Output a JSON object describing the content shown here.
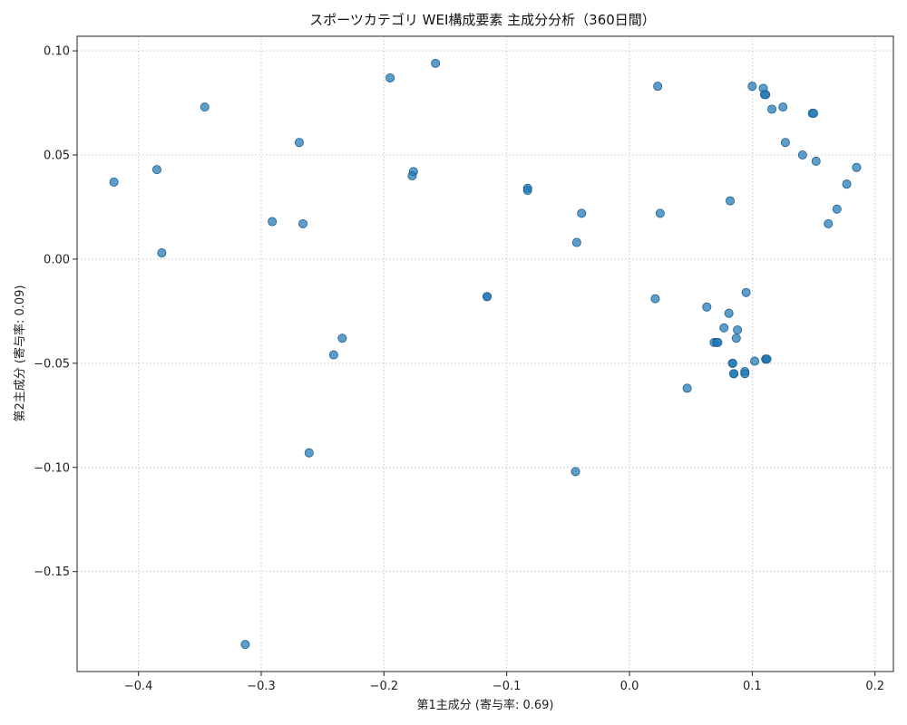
{
  "chart_data": {
    "type": "scatter",
    "title": "スポーツカテゴリ WEI構成要素 主成分分析（360日間）",
    "xlabel": "第1主成分 (寄与率: 0.69)",
    "ylabel": "第2主成分 (寄与率: 0.09)",
    "xlim": [
      -0.45,
      0.215
    ],
    "ylim": [
      -0.198,
      0.107
    ],
    "xticks": [
      -0.4,
      -0.3,
      -0.2,
      -0.1,
      0.0,
      0.1,
      0.2
    ],
    "xtick_labels": [
      "−0.4",
      "−0.3",
      "−0.2",
      "−0.1",
      "0.0",
      "0.1",
      "0.2"
    ],
    "yticks": [
      0.1,
      0.05,
      0.0,
      -0.05,
      -0.1,
      -0.15
    ],
    "ytick_labels": [
      "0.10",
      "0.05",
      "0.00",
      "−0.05",
      "−0.10",
      "−0.15"
    ],
    "grid": true,
    "point_color": "#1f77b4",
    "point_opacity": 0.72,
    "series": [
      {
        "points": [
          [
            -0.42,
            0.037
          ],
          [
            -0.385,
            0.043
          ],
          [
            -0.381,
            0.003
          ],
          [
            -0.346,
            0.073
          ],
          [
            -0.313,
            -0.185
          ],
          [
            -0.291,
            0.018
          ],
          [
            -0.269,
            0.056
          ],
          [
            -0.266,
            0.017
          ],
          [
            -0.261,
            -0.093
          ],
          [
            -0.241,
            -0.046
          ],
          [
            -0.234,
            -0.038
          ],
          [
            -0.195,
            0.087
          ],
          [
            -0.176,
            0.042
          ],
          [
            -0.177,
            0.04
          ],
          [
            -0.158,
            0.094
          ],
          [
            -0.116,
            -0.018
          ],
          [
            -0.116,
            -0.018
          ],
          [
            -0.083,
            0.034
          ],
          [
            -0.083,
            0.033
          ],
          [
            -0.039,
            0.022
          ],
          [
            -0.043,
            0.008
          ],
          [
            -0.044,
            -0.102
          ],
          [
            0.021,
            -0.019
          ],
          [
            0.023,
            0.083
          ],
          [
            0.025,
            0.022
          ],
          [
            0.047,
            -0.062
          ],
          [
            0.063,
            -0.023
          ],
          [
            0.069,
            -0.04
          ],
          [
            0.071,
            -0.04
          ],
          [
            0.072,
            -0.04
          ],
          [
            0.077,
            -0.033
          ],
          [
            0.081,
            -0.026
          ],
          [
            0.082,
            0.028
          ],
          [
            0.084,
            -0.05
          ],
          [
            0.084,
            -0.05
          ],
          [
            0.085,
            -0.055
          ],
          [
            0.085,
            -0.055
          ],
          [
            0.087,
            -0.038
          ],
          [
            0.088,
            -0.034
          ],
          [
            0.094,
            -0.054
          ],
          [
            0.094,
            -0.055
          ],
          [
            0.095,
            -0.016
          ],
          [
            0.1,
            0.083
          ],
          [
            0.102,
            -0.049
          ],
          [
            0.109,
            0.082
          ],
          [
            0.11,
            0.079
          ],
          [
            0.111,
            0.079
          ],
          [
            0.111,
            -0.048
          ],
          [
            0.111,
            -0.048
          ],
          [
            0.112,
            -0.048
          ],
          [
            0.116,
            0.072
          ],
          [
            0.125,
            0.073
          ],
          [
            0.127,
            0.056
          ],
          [
            0.141,
            0.05
          ],
          [
            0.149,
            0.07
          ],
          [
            0.15,
            0.07
          ],
          [
            0.152,
            0.047
          ],
          [
            0.162,
            0.017
          ],
          [
            0.169,
            0.024
          ],
          [
            0.177,
            0.036
          ],
          [
            0.185,
            0.044
          ]
        ]
      }
    ]
  }
}
